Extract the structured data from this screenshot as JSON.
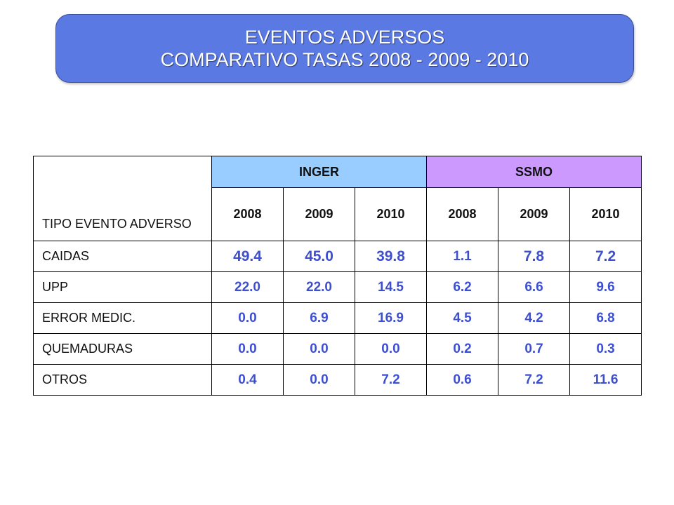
{
  "title": {
    "line1": "EVENTOS ADVERSOS",
    "line2": "COMPARATIVO TASAS 2008 - 2009 - 2010"
  },
  "colors": {
    "banner": "#5b79e2",
    "inger_header": "#99ccff",
    "ssmo_header": "#cc99ff",
    "value_text": "#3d4fcf"
  },
  "table": {
    "row_header_label": "TIPO EVENTO ADVERSO",
    "groups": [
      {
        "label": "INGER",
        "years": [
          "2008",
          "2009",
          "2010"
        ]
      },
      {
        "label": "SSMO",
        "years": [
          "2008",
          "2009",
          "2010"
        ]
      }
    ],
    "rows": [
      {
        "label": "CAIDAS",
        "values": [
          "49.4",
          "45.0",
          "39.8",
          "1.1",
          "7.8",
          "7.2"
        ]
      },
      {
        "label": "UPP",
        "values": [
          "22.0",
          "22.0",
          "14.5",
          "6.2",
          "6.6",
          "9.6"
        ]
      },
      {
        "label": "ERROR MEDIC.",
        "values": [
          "0.0",
          "6.9",
          "16.9",
          "4.5",
          "4.2",
          "6.8"
        ]
      },
      {
        "label": "QUEMADURAS",
        "values": [
          "0.0",
          "0.0",
          "0.0",
          "0.2",
          "0.7",
          "0.3"
        ]
      },
      {
        "label": "OTROS",
        "values": [
          "0.4",
          "0.0",
          "7.2",
          "0.6",
          "7.2",
          "11.6"
        ]
      }
    ]
  }
}
